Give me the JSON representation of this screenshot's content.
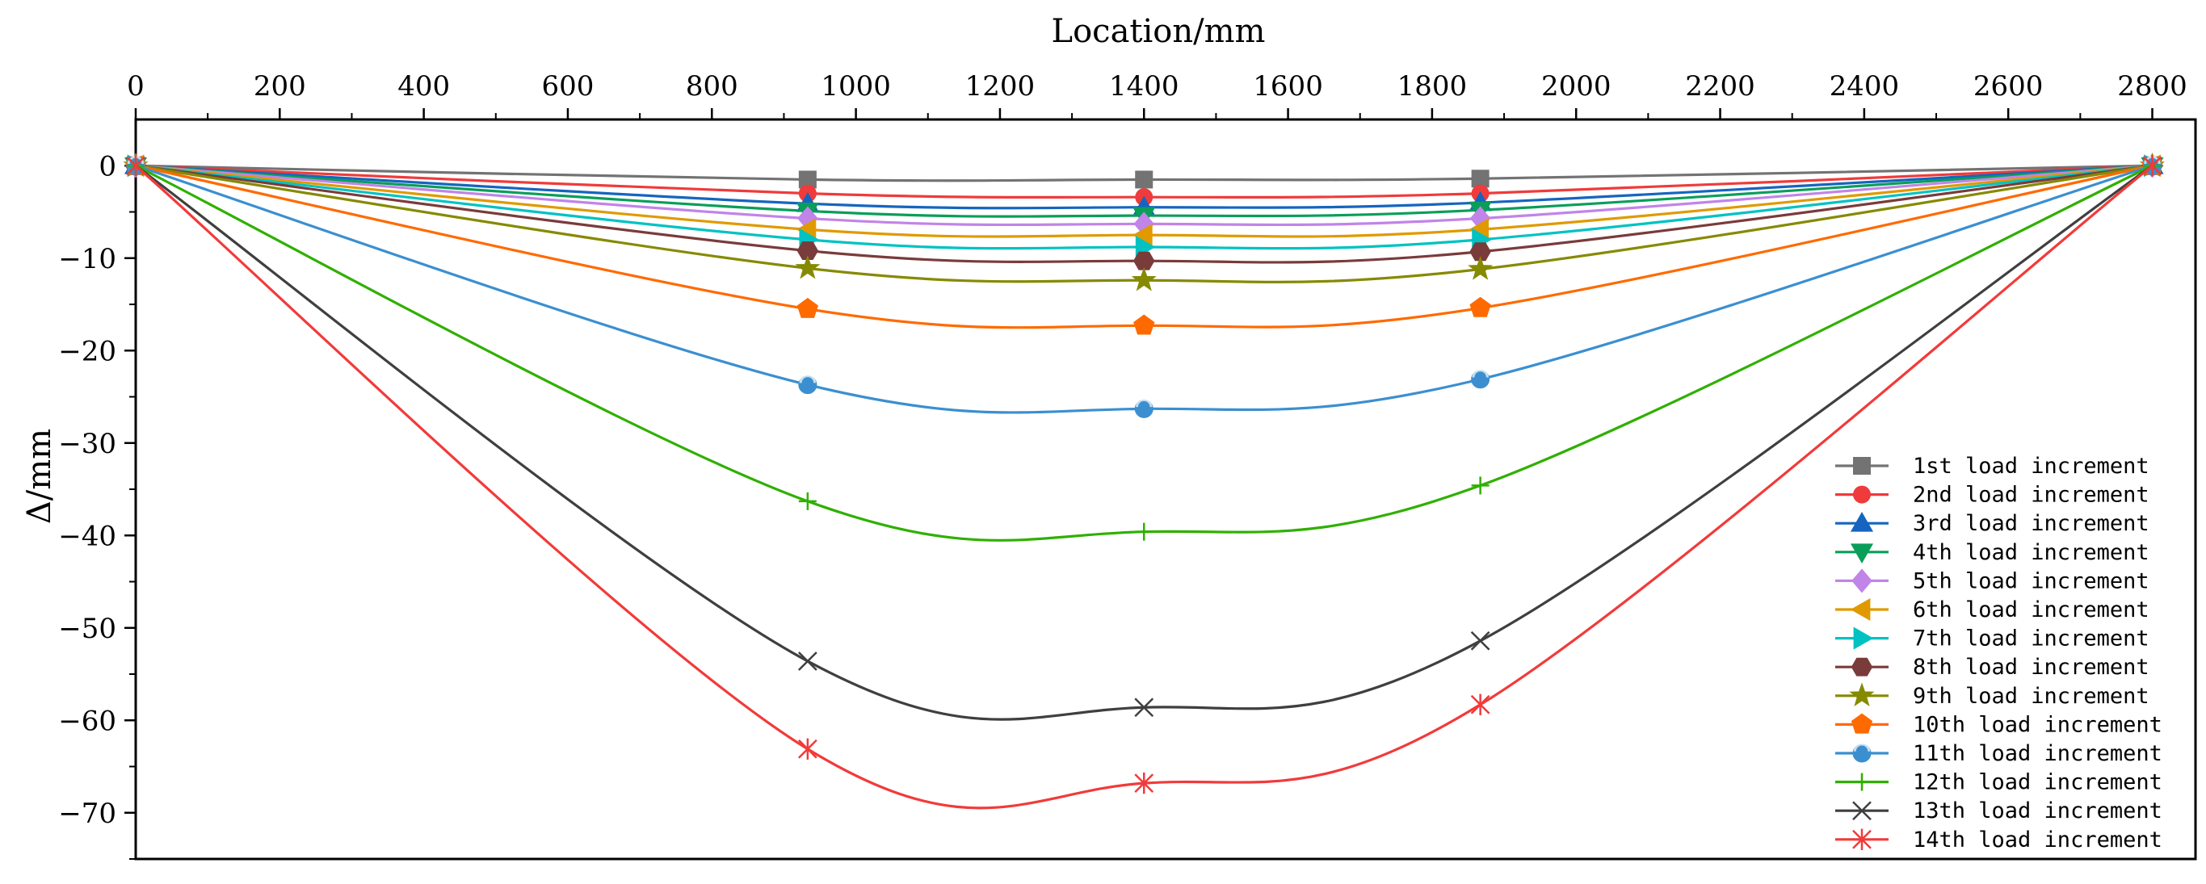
{
  "chart_data": {
    "type": "line",
    "title": "",
    "xlabel": "Location/mm",
    "ylabel": "Δ/mm",
    "xlim": [
      0,
      2860
    ],
    "ylim": [
      -75,
      5
    ],
    "xticks": [
      0,
      200,
      400,
      600,
      800,
      1000,
      1200,
      1400,
      1600,
      1800,
      2000,
      2200,
      2400,
      2600,
      2800
    ],
    "yticks": [
      0,
      -10,
      -20,
      -30,
      -40,
      -50,
      -60,
      -70
    ],
    "x": [
      0,
      933,
      1400,
      1867,
      2800
    ],
    "legend_position": "bottom-right",
    "series": [
      {
        "name": "1st load increment",
        "values": [
          0,
          -1.5,
          -1.5,
          -1.4,
          0
        ],
        "color": "#737373",
        "marker": "square"
      },
      {
        "name": "2nd load increment",
        "values": [
          0,
          -3.0,
          -3.4,
          -3.0,
          0
        ],
        "color": "#ef3b3b",
        "marker": "circle"
      },
      {
        "name": "3rd load increment",
        "values": [
          0,
          -4.1,
          -4.5,
          -4.0,
          0
        ],
        "color": "#1565c0",
        "marker": "triangle-up"
      },
      {
        "name": "4th load increment",
        "values": [
          0,
          -4.9,
          -5.4,
          -4.8,
          0
        ],
        "color": "#0a9e5a",
        "marker": "triangle-down"
      },
      {
        "name": "5th load increment",
        "values": [
          0,
          -5.7,
          -6.3,
          -5.7,
          0
        ],
        "color": "#c184e8",
        "marker": "diamond"
      },
      {
        "name": "6th load increment",
        "values": [
          0,
          -6.9,
          -7.5,
          -6.9,
          0
        ],
        "color": "#e09a00",
        "marker": "triangle-left"
      },
      {
        "name": "7th load increment",
        "values": [
          0,
          -8.0,
          -8.8,
          -8.0,
          0
        ],
        "color": "#00c2c2",
        "marker": "triangle-right"
      },
      {
        "name": "8th load increment",
        "values": [
          0,
          -9.2,
          -10.3,
          -9.3,
          0
        ],
        "color": "#7a3b3b",
        "marker": "hexagon"
      },
      {
        "name": "9th load increment",
        "values": [
          0,
          -11.1,
          -12.4,
          -11.2,
          0
        ],
        "color": "#868a00",
        "marker": "star"
      },
      {
        "name": "10th load increment",
        "values": [
          0,
          -15.5,
          -17.3,
          -15.4,
          0
        ],
        "color": "#ff6a00",
        "marker": "pentagon"
      },
      {
        "name": "11th load increment",
        "values": [
          0,
          -23.7,
          -26.3,
          -23.1,
          0
        ],
        "color": "#3b8fd0",
        "marker": "circle-half"
      },
      {
        "name": "12th load increment",
        "values": [
          0,
          -36.3,
          -39.6,
          -34.6,
          0
        ],
        "color": "#2fb000",
        "marker": "plus"
      },
      {
        "name": "13th load increment",
        "values": [
          0,
          -53.6,
          -58.6,
          -51.4,
          0
        ],
        "color": "#3f3f3f",
        "marker": "x"
      },
      {
        "name": "14th load increment",
        "values": [
          0,
          -63.1,
          -66.8,
          -58.3,
          0
        ],
        "color": "#f23a3a",
        "marker": "asterisk"
      }
    ]
  }
}
